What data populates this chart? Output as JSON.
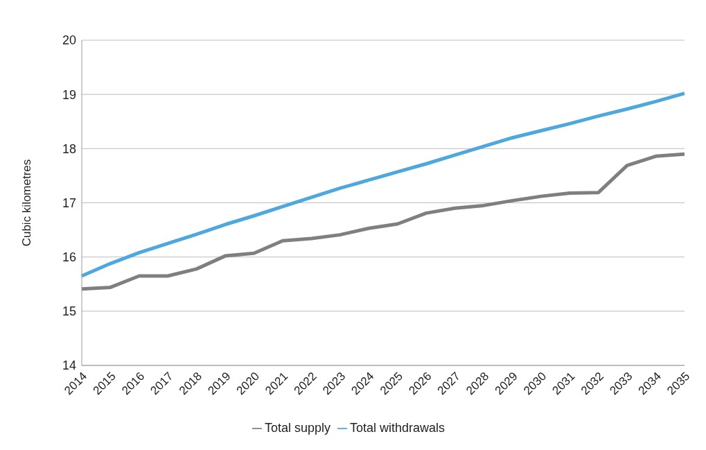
{
  "chart_data": {
    "type": "line",
    "ylabel": "Cubic kilometres",
    "categories": [
      "2014",
      "2015",
      "2016",
      "2017",
      "2018",
      "2019",
      "2020",
      "2021",
      "2022",
      "2023",
      "2024",
      "2025",
      "2026",
      "2027",
      "2028",
      "2029",
      "2030",
      "2031",
      "2032",
      "2033",
      "2034",
      "2035"
    ],
    "series": [
      {
        "name": "Total withdrawals",
        "color": "#4ea7dd",
        "values": [
          15.65,
          15.88,
          16.08,
          16.25,
          16.42,
          16.6,
          16.76,
          16.93,
          17.1,
          17.27,
          17.42,
          17.57,
          17.72,
          17.88,
          18.04,
          18.2,
          18.33,
          18.46,
          18.6,
          18.73,
          18.87,
          19.02
        ]
      },
      {
        "name": "Total supply",
        "color": "#7f7f7f",
        "values": [
          15.41,
          15.44,
          15.65,
          15.65,
          15.78,
          16.02,
          16.07,
          16.3,
          16.34,
          16.41,
          16.53,
          16.61,
          16.81,
          16.9,
          16.95,
          17.04,
          17.12,
          17.18,
          17.19,
          17.69,
          17.86,
          17.9
        ]
      }
    ],
    "ylim": [
      14,
      20
    ],
    "yticks": [
      14,
      15,
      16,
      17,
      18,
      19,
      20
    ],
    "grid": "y",
    "legend": "bottom",
    "marker": "none",
    "line_style": "solid"
  }
}
